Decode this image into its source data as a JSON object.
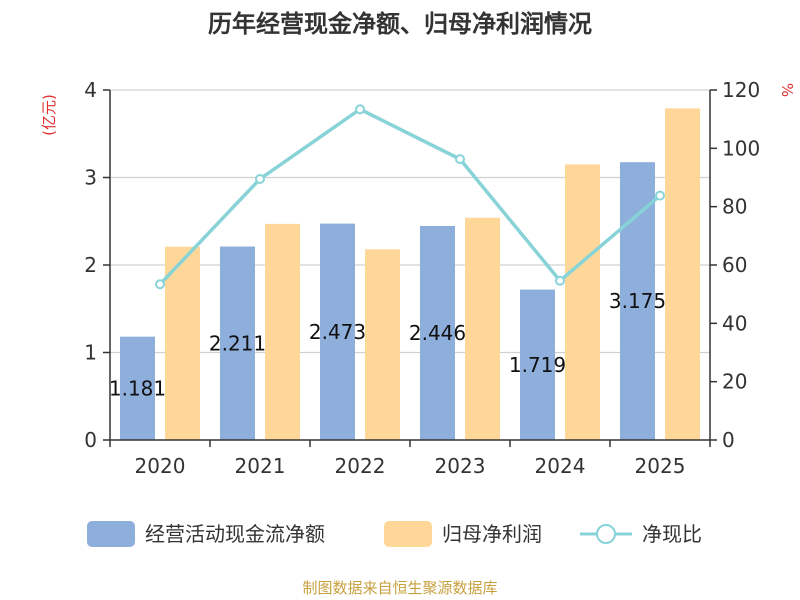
{
  "chart_data": {
    "type": "bar",
    "title": "历年经营现金净额、归母净利润情况",
    "categories": [
      "2020",
      "2021",
      "2022",
      "2023",
      "2024",
      "2025"
    ],
    "series": [
      {
        "name": "经营活动现金流净额",
        "kind": "bar",
        "axis": "left",
        "color": "#8eaedc",
        "values": [
          1.181,
          2.211,
          2.473,
          2.446,
          1.719,
          3.175
        ],
        "labels": [
          "1.181",
          "2.211",
          "2.473",
          "2.446",
          "1.719",
          "3.175"
        ]
      },
      {
        "name": "归母净利润",
        "kind": "bar",
        "axis": "left",
        "color": "#ffd899",
        "values": [
          2.21,
          2.47,
          2.18,
          2.54,
          3.15,
          3.79
        ]
      },
      {
        "name": "净现比",
        "kind": "line",
        "axis": "right",
        "color": "#87d3d7",
        "values": [
          53.4,
          89.5,
          113.4,
          96.3,
          54.6,
          83.8
        ]
      }
    ],
    "y_left": {
      "unit": "(亿元)",
      "ylim": [
        0,
        4
      ],
      "ticks": [
        "0",
        "1",
        "2",
        "3",
        "4"
      ]
    },
    "y_right": {
      "unit": "%",
      "ylim": [
        0,
        120
      ],
      "ticks": [
        "0",
        "20",
        "40",
        "60",
        "80",
        "100",
        "120"
      ]
    },
    "grid": true,
    "legend": "bottom"
  },
  "footer": {
    "source": "制图数据来自恒生聚源数据库"
  }
}
